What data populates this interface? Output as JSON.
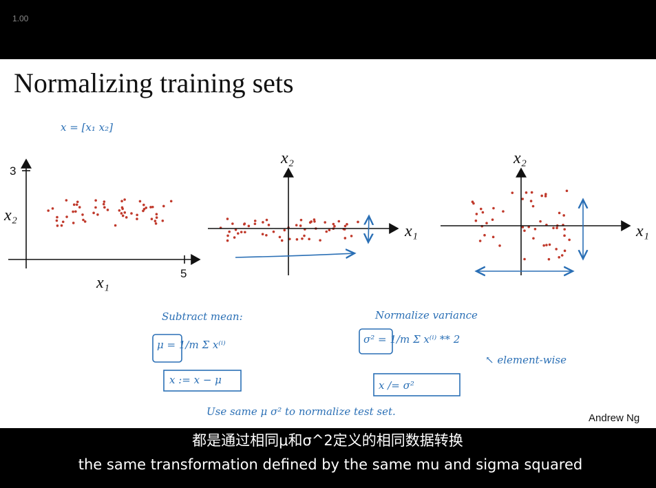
{
  "player": {
    "speed": "1.00"
  },
  "slide": {
    "title": "Normalizing training sets",
    "plots": [
      {
        "x_label": "x₁",
        "y_label": "x₂",
        "x_tick": "5",
        "y_tick": "3"
      },
      {
        "x_label": "x₁",
        "y_label": "x₂"
      },
      {
        "x_label": "x₁",
        "y_label": "x₂"
      }
    ],
    "notes": {
      "vector": "x = [x₁ x₂]",
      "subtract_heading": "Subtract mean:",
      "mean_formula": "μ = 1/m Σ x⁽ⁱ⁾",
      "mean_update": "x := x − μ",
      "variance_heading": "Normalize variance",
      "variance_formula": "σ² = 1/m Σ x⁽ⁱ⁾ ** 2",
      "elementwise": "↖ element-wise",
      "variance_update": "x /= σ²",
      "test_note": "Use same μ σ² to normalize test set."
    },
    "author": "Andrew Ng"
  },
  "subtitles": {
    "zh": "都是通过相同μ和σ^2定义的相同数据转换",
    "en": "the same transformation defined by the same mu and sigma squared"
  }
}
